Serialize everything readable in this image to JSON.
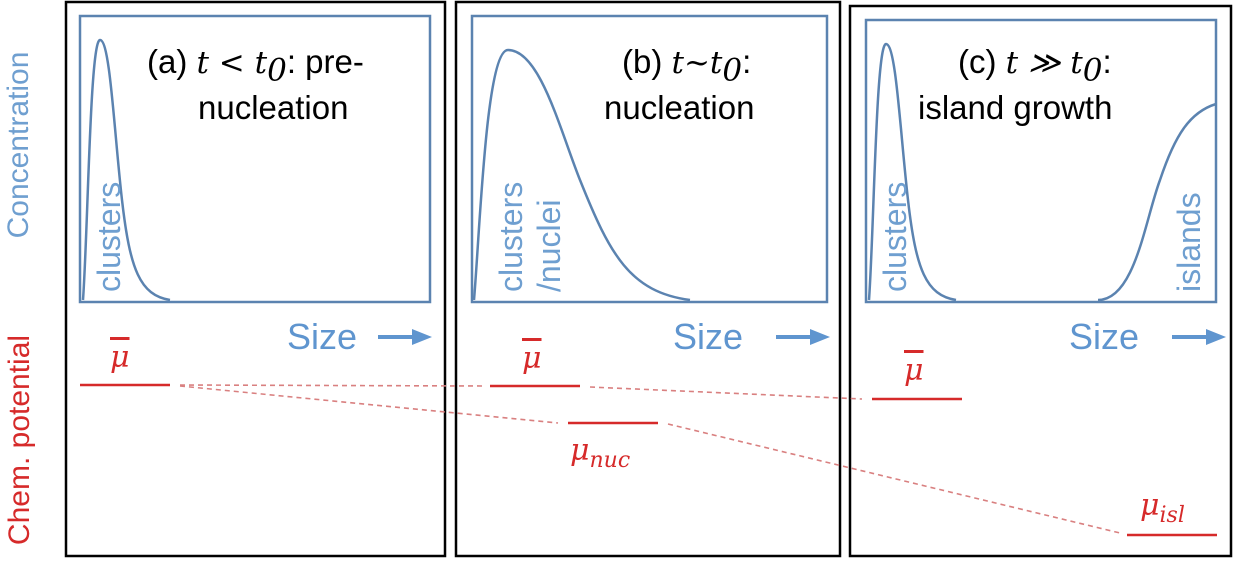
{
  "axis_labels": {
    "concentration": "Concentration",
    "chem_potential": "Chem. potential"
  },
  "panels": [
    {
      "id": "a",
      "title_prefix": "(a) ",
      "title_math": "t < t",
      "title_sub": "0",
      "title_suffix": ": pre-",
      "title_line2": "nucleation",
      "curve_labels": [
        "clusters"
      ],
      "size_label": "Size →",
      "mu_bar_label": "μ"
    },
    {
      "id": "b",
      "title_prefix": "(b) ",
      "title_math": "t~t",
      "title_sub": "0",
      "title_suffix": ":",
      "title_line2": "nucleation",
      "curve_labels": [
        "clusters",
        "/nuclei"
      ],
      "size_label": "Size →",
      "mu_bar_label": "μ",
      "mu_nuc_label": "μ",
      "mu_nuc_sub": "nuc"
    },
    {
      "id": "c",
      "title_prefix": "(c) ",
      "title_math": "t ≫ t",
      "title_sub": "0",
      "title_suffix": ":",
      "title_line2": "island growth",
      "curve_labels": [
        "clusters",
        "islands"
      ],
      "size_label": "Size →",
      "mu_bar_label": "μ",
      "mu_isl_label": "μ",
      "mu_isl_sub": "isl"
    }
  ],
  "colors": {
    "concentration": "#6f9fd0",
    "chem_potential": "#d62a2a",
    "frame": "#000000",
    "plot_box": "#5b83b0"
  }
}
